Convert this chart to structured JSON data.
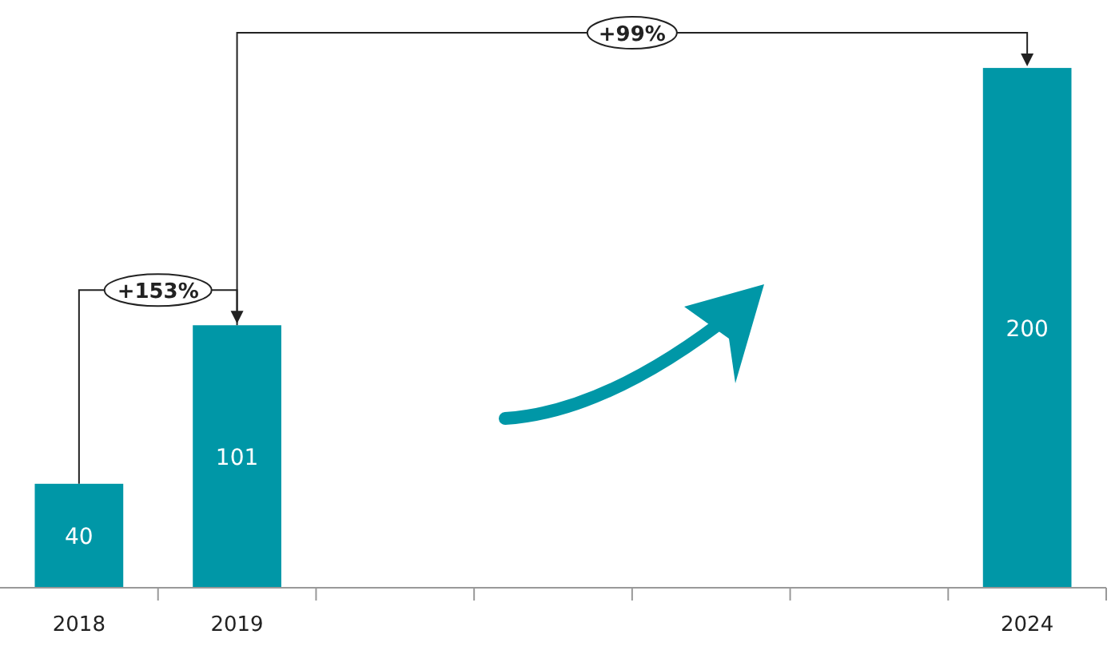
{
  "chart_data": {
    "type": "bar",
    "categories": [
      "2018",
      "2019",
      null,
      null,
      null,
      null,
      "2024"
    ],
    "values": [
      40,
      101,
      null,
      null,
      null,
      null,
      200
    ],
    "color": "#0097a7",
    "data_labels": true,
    "annotations": [
      "+153%",
      "+99%"
    ]
  }
}
